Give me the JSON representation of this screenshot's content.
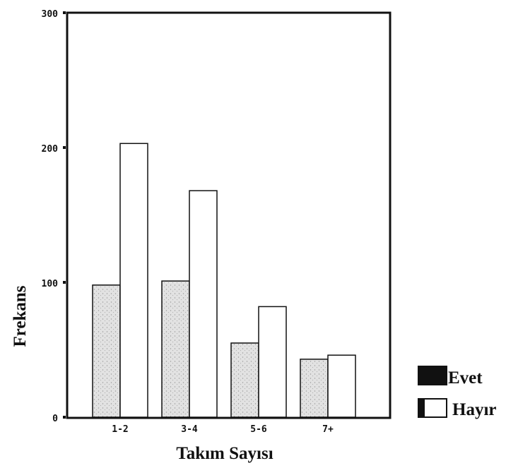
{
  "chart_data": {
    "type": "bar",
    "categories": [
      "1-2",
      "3-4",
      "5-6",
      "7+"
    ],
    "series": [
      {
        "name": "Evet",
        "values": [
          98,
          101,
          55,
          43
        ],
        "color": "#d8d8d8"
      },
      {
        "name": "Hayır",
        "values": [
          203,
          168,
          82,
          46
        ],
        "color": "#ffffff"
      }
    ],
    "xlabel": "Takım Sayısı",
    "ylabel": "Frekans",
    "ylim": [
      0,
      300
    ],
    "yticks": [
      "0",
      "100",
      "200",
      "300"
    ],
    "grid": false,
    "legend_position": "right"
  }
}
